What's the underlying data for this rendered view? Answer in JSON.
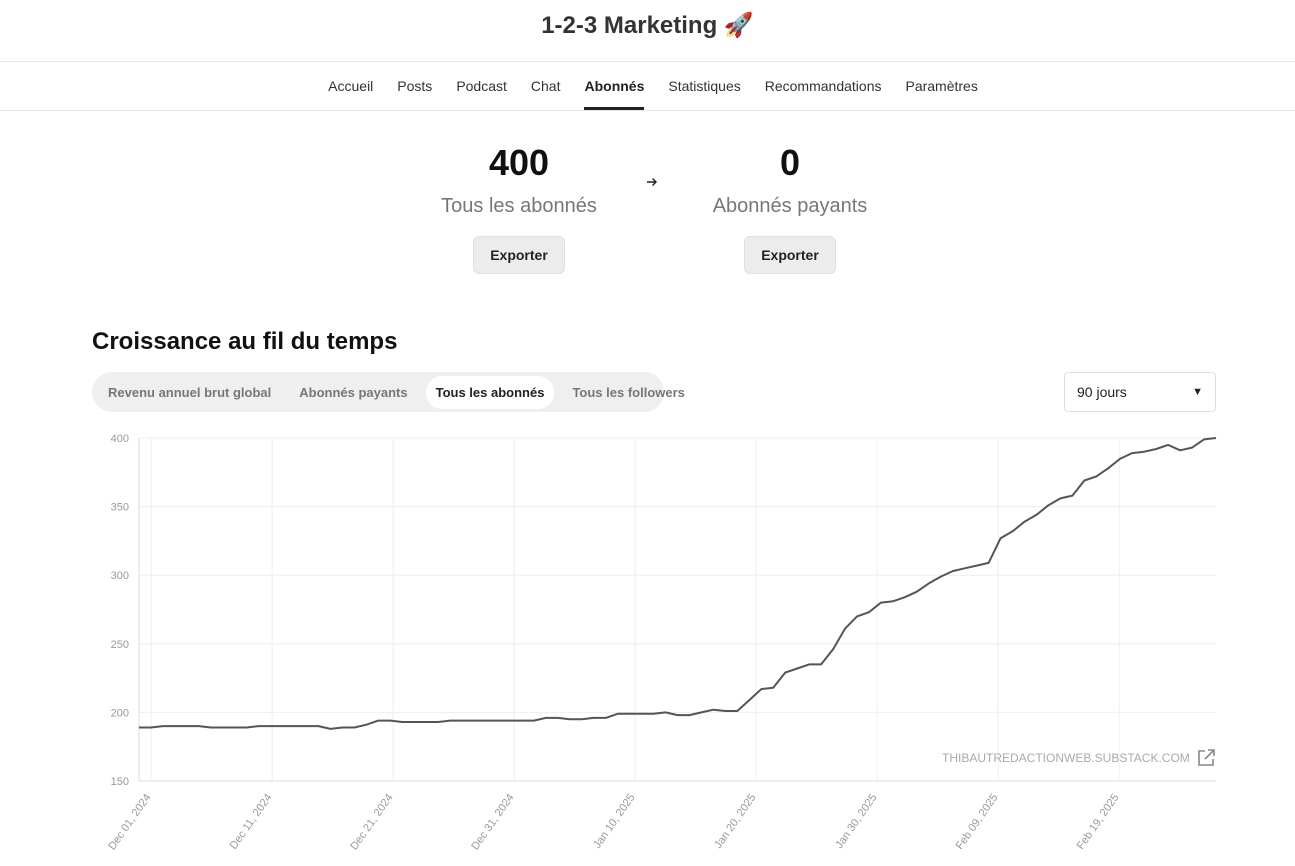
{
  "header": {
    "title": "1-2-3 Marketing 🚀"
  },
  "nav": {
    "items": [
      {
        "label": "Accueil"
      },
      {
        "label": "Posts"
      },
      {
        "label": "Podcast"
      },
      {
        "label": "Chat"
      },
      {
        "label": "Abonnés",
        "active": true
      },
      {
        "label": "Statistiques"
      },
      {
        "label": "Recommandations"
      },
      {
        "label": "Paramètres"
      }
    ]
  },
  "stats": {
    "all": {
      "value": "400",
      "label": "Tous les abonnés",
      "export_label": "Exporter"
    },
    "paid": {
      "value": "0",
      "label": "Abonnés payants",
      "export_label": "Exporter"
    }
  },
  "growth": {
    "title": "Croissance au fil du temps",
    "tabs": [
      {
        "label": "Revenu annuel brut global"
      },
      {
        "label": "Abonnés payants"
      },
      {
        "label": "Tous les abonnés",
        "active": true
      },
      {
        "label": "Tous les followers"
      }
    ],
    "period": {
      "selected": "90 jours"
    },
    "watermark": "THIBAUTREDACTIONWEB.SUBSTACK.COM"
  },
  "colors": {
    "line": "#555555",
    "grid": "#eeeeee",
    "axis_text": "#999999"
  },
  "chart_data": {
    "type": "line",
    "title": "",
    "xlabel": "",
    "ylabel": "",
    "ylim": [
      150,
      400
    ],
    "yticks": [
      150,
      200,
      250,
      300,
      350,
      400
    ],
    "xticks": [
      "Dec 01, 2024",
      "Dec 11, 2024",
      "Dec 21, 2024",
      "Dec 31, 2024",
      "Jan 10, 2025",
      "Jan 20, 2025",
      "Jan 30, 2025",
      "Feb 09, 2025",
      "Feb 19, 2025"
    ],
    "grid": true,
    "x_start": "2024-11-30",
    "x_end": "2025-02-27",
    "series": [
      {
        "values": [
          189,
          189,
          190,
          190,
          190,
          190,
          189,
          189,
          189,
          189,
          190,
          190,
          190,
          190,
          190,
          190,
          188,
          189,
          189,
          191,
          194,
          194,
          193,
          193,
          193,
          193,
          194,
          194,
          194,
          194,
          194,
          194,
          194,
          194,
          196,
          196,
          195,
          195,
          196,
          196,
          199,
          199,
          199,
          199,
          200,
          198,
          198,
          200,
          202,
          201,
          201,
          209,
          217,
          218,
          229,
          232,
          235,
          235,
          246,
          261,
          270,
          273,
          280,
          281,
          284,
          288,
          294,
          299,
          303,
          305,
          307,
          309,
          327,
          332,
          339,
          344,
          351,
          356,
          358,
          369,
          372,
          378,
          385,
          389,
          390,
          392,
          395,
          391,
          393,
          399,
          400
        ]
      }
    ]
  }
}
